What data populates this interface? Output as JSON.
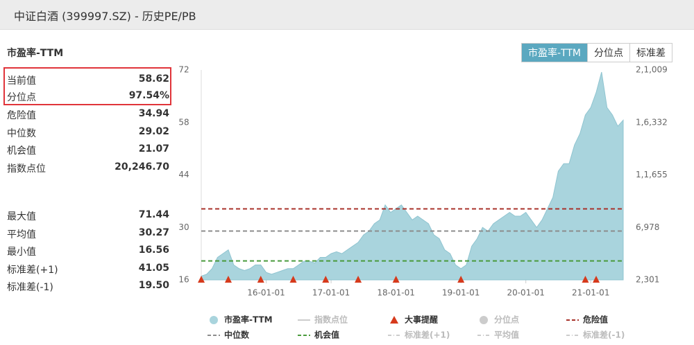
{
  "header": {
    "title": "中证白酒 (399997.SZ) - 历史PE/PB"
  },
  "panel": {
    "title": "市盈率-TTM",
    "rows": [
      [
        "当前值",
        "58.62"
      ],
      [
        "分位点",
        "97.54%"
      ],
      [
        "危险值",
        "34.94"
      ],
      [
        "中位数",
        "29.02"
      ],
      [
        "机会值",
        "21.07"
      ],
      [
        "指数点位",
        "20,246.70"
      ]
    ],
    "rows2": [
      [
        "最大值",
        "71.44"
      ],
      [
        "平均值",
        "30.27"
      ],
      [
        "最小值",
        "16.56"
      ],
      [
        "标准差(+1)",
        "41.05"
      ],
      [
        "标准差(-1)",
        "19.50"
      ]
    ]
  },
  "tabs": [
    "市盈率-TTM",
    "分位点",
    "标准差"
  ],
  "chart_data": {
    "type": "area",
    "x": [
      "15-01-01",
      "15-02-01",
      "15-03-01",
      "15-04-01",
      "15-05-01",
      "15-06-01",
      "15-07-01",
      "15-08-01",
      "15-09-01",
      "15-10-01",
      "15-11-01",
      "15-12-01",
      "16-01-01",
      "16-02-01",
      "16-03-01",
      "16-04-01",
      "16-05-01",
      "16-06-01",
      "16-07-01",
      "16-08-01",
      "16-09-01",
      "16-10-01",
      "16-11-01",
      "16-12-01",
      "17-01-01",
      "17-02-01",
      "17-03-01",
      "17-04-01",
      "17-05-01",
      "17-06-01",
      "17-07-01",
      "17-08-01",
      "17-09-01",
      "17-10-01",
      "17-11-01",
      "17-12-01",
      "18-01-01",
      "18-02-01",
      "18-03-01",
      "18-04-01",
      "18-05-01",
      "18-06-01",
      "18-07-01",
      "18-08-01",
      "18-09-01",
      "18-10-01",
      "18-11-01",
      "18-12-01",
      "19-01-01",
      "19-02-01",
      "19-03-01",
      "19-04-01",
      "19-05-01",
      "19-06-01",
      "19-07-01",
      "19-08-01",
      "19-09-01",
      "19-10-01",
      "19-11-01",
      "19-12-01",
      "20-01-01",
      "20-02-01",
      "20-03-01",
      "20-04-01",
      "20-05-01",
      "20-06-01",
      "20-07-01",
      "20-08-01",
      "20-09-01",
      "20-10-01",
      "20-11-01",
      "20-12-01",
      "21-01-01",
      "21-02-01",
      "21-03-01",
      "21-04-01",
      "21-05-01",
      "21-06-01",
      "21-07-01"
    ],
    "series": [
      {
        "name": "市盈率-TTM",
        "color": "#a9d4dd",
        "values": [
          17,
          17.5,
          19,
          22,
          23,
          24,
          20,
          19,
          18.5,
          19,
          20,
          20,
          18,
          17.5,
          18,
          18.5,
          19,
          19,
          20,
          21,
          21,
          20.5,
          22,
          22,
          23,
          23.5,
          23,
          24,
          25,
          26,
          28,
          29,
          31,
          32,
          36,
          34,
          35,
          36,
          34,
          32,
          33,
          32,
          31,
          28,
          27,
          24,
          23,
          20,
          19,
          20,
          25,
          27,
          30,
          29,
          31,
          32,
          33,
          34,
          33,
          33,
          34,
          32,
          30,
          32,
          35,
          38,
          45,
          47,
          47,
          52,
          55,
          60,
          62,
          66,
          71.44,
          62,
          60,
          57,
          58.62
        ]
      }
    ],
    "ylim": [
      16,
      72
    ],
    "yticks": [
      16,
      30,
      44,
      58,
      72
    ],
    "y2lim": [
      2301,
      21009
    ],
    "y2ticks": [
      {
        "value": 2301,
        "label": "2,301"
      },
      {
        "value": 6978,
        "label": "6,978"
      },
      {
        "value": 11655,
        "label": "1,1,655"
      },
      {
        "value": 16332,
        "label": "1,6,332"
      },
      {
        "value": 21009,
        "label": "2,1,009"
      }
    ],
    "xlim": [
      "15-01-01",
      "21-07-01"
    ],
    "xticks": [
      "16-01-01",
      "17-01-01",
      "18-01-01",
      "19-01-01",
      "20-01-01",
      "21-01-01"
    ],
    "events": [
      "15-01-01",
      "15-06-01",
      "15-12-01",
      "16-06-01",
      "16-12-01",
      "17-06-01",
      "18-01-01",
      "19-01-01",
      "20-12-01",
      "21-02-01"
    ],
    "legend": [
      {
        "name": "市盈率-TTM",
        "color": "#a9d4dd",
        "symbol": "circle",
        "active": true
      },
      {
        "name": "指数点位",
        "color": "#cccccc",
        "symbol": "line",
        "active": false
      },
      {
        "name": "大事提醒",
        "color": "#d63a1c",
        "symbol": "triangle",
        "active": true
      },
      {
        "name": "分位点",
        "color": "#cccccc",
        "symbol": "circle",
        "active": false
      },
      {
        "name": "危险值",
        "color": "#a8322b",
        "symbol": "dash",
        "active": true,
        "value": 34.94
      },
      {
        "name": "中位数",
        "color": "#8c8c8c",
        "symbol": "dash",
        "active": true,
        "value": 29.02
      },
      {
        "name": "机会值",
        "color": "#4a9a3c",
        "symbol": "dash",
        "active": true,
        "value": 21.07
      },
      {
        "name": "标准差(+1)",
        "color": "#cccccc",
        "symbol": "dashdot",
        "active": false
      },
      {
        "name": "平均值",
        "color": "#cccccc",
        "symbol": "dashdot",
        "active": false
      },
      {
        "name": "标准差(-1)",
        "color": "#cccccc",
        "symbol": "dashdot",
        "active": false
      }
    ]
  }
}
